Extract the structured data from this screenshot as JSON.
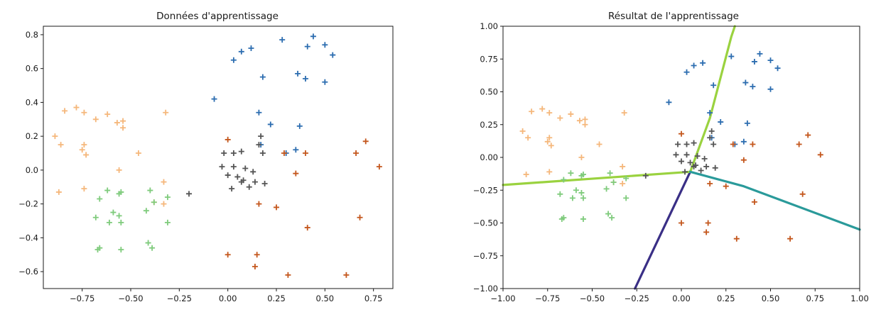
{
  "colors": {
    "blue": "#2c6db0",
    "orange": "#c4571d",
    "grey": "#555555",
    "lightorange": "#f5b77b",
    "green": "#7fcb7c",
    "boundary_navy": "#3a2f86",
    "boundary_lime": "#9ad23f",
    "boundary_teal": "#2a9a9a"
  },
  "chart_data": [
    {
      "type": "scatter",
      "title": "Données d'apprentissage",
      "xlabel": "",
      "ylabel": "",
      "xlim": [
        -0.95,
        0.85
      ],
      "ylim": [
        -0.7,
        0.85
      ],
      "xticks": [
        -0.75,
        -0.5,
        -0.25,
        0.0,
        0.25,
        0.5,
        0.75
      ],
      "xtick_labels": [
        "−0.75",
        "−0.50",
        "−0.25",
        "0.00",
        "0.25",
        "0.50",
        "0.75"
      ],
      "yticks": [
        -0.6,
        -0.4,
        -0.2,
        0.0,
        0.2,
        0.4,
        0.6,
        0.8
      ],
      "ytick_labels": [
        "−0.6",
        "−0.4",
        "−0.2",
        "0.0",
        "0.2",
        "0.4",
        "0.6",
        "0.8"
      ],
      "grid": false,
      "marker": "+",
      "series": [
        {
          "color": "#2c6db0",
          "points": [
            [
              0.03,
              0.65
            ],
            [
              0.07,
              0.7
            ],
            [
              0.12,
              0.72
            ],
            [
              0.18,
              0.55
            ],
            [
              0.28,
              0.77
            ],
            [
              0.44,
              0.79
            ],
            [
              0.5,
              0.74
            ],
            [
              0.54,
              0.68
            ],
            [
              0.41,
              0.73
            ],
            [
              0.36,
              0.57
            ],
            [
              0.4,
              0.54
            ],
            [
              0.5,
              0.52
            ],
            [
              -0.07,
              0.42
            ],
            [
              0.16,
              0.34
            ],
            [
              0.22,
              0.27
            ],
            [
              0.37,
              0.26
            ],
            [
              0.3,
              0.1
            ],
            [
              0.35,
              0.12
            ],
            [
              0.17,
              0.15
            ]
          ]
        },
        {
          "color": "#c4571d",
          "points": [
            [
              0.0,
              0.18
            ],
            [
              0.29,
              0.1
            ],
            [
              0.4,
              0.1
            ],
            [
              0.35,
              -0.02
            ],
            [
              0.16,
              -0.2
            ],
            [
              0.25,
              -0.22
            ],
            [
              0.41,
              -0.34
            ],
            [
              0.66,
              0.1
            ],
            [
              0.71,
              0.17
            ],
            [
              0.78,
              0.02
            ],
            [
              0.0,
              -0.5
            ],
            [
              0.15,
              -0.5
            ],
            [
              0.14,
              -0.57
            ],
            [
              0.31,
              -0.62
            ],
            [
              0.61,
              -0.62
            ],
            [
              0.68,
              -0.28
            ]
          ]
        },
        {
          "color": "#555555",
          "points": [
            [
              -0.02,
              0.1
            ],
            [
              0.03,
              0.1
            ],
            [
              0.07,
              0.11
            ],
            [
              0.17,
              0.2
            ],
            [
              0.16,
              0.15
            ],
            [
              0.18,
              0.1
            ],
            [
              -0.03,
              0.02
            ],
            [
              0.03,
              0.02
            ],
            [
              0.09,
              0.01
            ],
            [
              0.13,
              -0.01
            ],
            [
              0.0,
              -0.03
            ],
            [
              0.05,
              -0.04
            ],
            [
              0.08,
              -0.06
            ],
            [
              0.11,
              -0.1
            ],
            [
              0.02,
              -0.11
            ],
            [
              0.07,
              -0.07
            ],
            [
              0.14,
              -0.07
            ],
            [
              0.19,
              -0.08
            ],
            [
              -0.2,
              -0.14
            ]
          ]
        },
        {
          "color": "#f5b77b",
          "points": [
            [
              -0.89,
              0.2
            ],
            [
              -0.86,
              0.15
            ],
            [
              -0.84,
              0.35
            ],
            [
              -0.78,
              0.37
            ],
            [
              -0.74,
              0.34
            ],
            [
              -0.68,
              0.3
            ],
            [
              -0.62,
              0.33
            ],
            [
              -0.57,
              0.28
            ],
            [
              -0.54,
              0.29
            ],
            [
              -0.54,
              0.25
            ],
            [
              -0.32,
              0.34
            ],
            [
              -0.74,
              0.15
            ],
            [
              -0.75,
              0.12
            ],
            [
              -0.73,
              0.09
            ],
            [
              -0.46,
              0.1
            ],
            [
              -0.87,
              -0.13
            ],
            [
              -0.74,
              -0.11
            ],
            [
              -0.56,
              0.0
            ],
            [
              -0.33,
              -0.07
            ],
            [
              -0.38,
              -0.19
            ],
            [
              -0.33,
              -0.2
            ]
          ]
        },
        {
          "color": "#7fcb7c",
          "points": [
            [
              -0.66,
              -0.17
            ],
            [
              -0.62,
              -0.12
            ],
            [
              -0.56,
              -0.14
            ],
            [
              -0.55,
              -0.13
            ],
            [
              -0.4,
              -0.12
            ],
            [
              -0.38,
              -0.19
            ],
            [
              -0.31,
              -0.16
            ],
            [
              -0.42,
              -0.24
            ],
            [
              -0.68,
              -0.28
            ],
            [
              -0.59,
              -0.25
            ],
            [
              -0.56,
              -0.27
            ],
            [
              -0.61,
              -0.31
            ],
            [
              -0.55,
              -0.31
            ],
            [
              -0.31,
              -0.31
            ],
            [
              -0.66,
              -0.46
            ],
            [
              -0.67,
              -0.47
            ],
            [
              -0.55,
              -0.47
            ],
            [
              -0.41,
              -0.43
            ],
            [
              -0.39,
              -0.46
            ]
          ]
        }
      ]
    },
    {
      "type": "scatter",
      "title": "Résultat de l'apprentissage",
      "xlabel": "",
      "ylabel": "",
      "xlim": [
        -1.0,
        1.0
      ],
      "ylim": [
        -1.0,
        1.0
      ],
      "xticks": [
        -1.0,
        -0.75,
        -0.5,
        -0.25,
        0.0,
        0.25,
        0.5,
        0.75,
        1.0
      ],
      "xtick_labels": [
        "−1.00",
        "−0.75",
        "−0.50",
        "−0.25",
        "0.00",
        "0.25",
        "0.50",
        "0.75",
        "1.00"
      ],
      "yticks": [
        -1.0,
        -0.75,
        -0.5,
        -0.25,
        0.0,
        0.25,
        0.5,
        0.75,
        1.0
      ],
      "ytick_labels": [
        "−1.00",
        "−0.75",
        "−0.50",
        "−0.25",
        "0.00",
        "0.25",
        "0.50",
        "0.75",
        "1.00"
      ],
      "grid": false,
      "marker": "+",
      "decision_boundaries": [
        {
          "color": "#3a2f86",
          "points": [
            [
              -0.26,
              -1.0
            ],
            [
              0.05,
              -0.11
            ]
          ]
        },
        {
          "color": "#9ad23f",
          "points": [
            [
              0.05,
              -0.11
            ],
            [
              0.16,
              0.3
            ],
            [
              0.28,
              0.92
            ],
            [
              0.3,
              1.0
            ]
          ]
        },
        {
          "color": "#9ad23f",
          "points": [
            [
              -1.0,
              -0.21
            ],
            [
              0.05,
              -0.11
            ]
          ]
        },
        {
          "color": "#2a9a9a",
          "points": [
            [
              0.05,
              -0.11
            ],
            [
              0.35,
              -0.22
            ],
            [
              1.0,
              -0.55
            ]
          ]
        }
      ],
      "series": [
        {
          "color": "#2c6db0",
          "points": [
            [
              0.03,
              0.65
            ],
            [
              0.07,
              0.7
            ],
            [
              0.12,
              0.72
            ],
            [
              0.18,
              0.55
            ],
            [
              0.28,
              0.77
            ],
            [
              0.44,
              0.79
            ],
            [
              0.5,
              0.74
            ],
            [
              0.54,
              0.68
            ],
            [
              0.41,
              0.73
            ],
            [
              0.36,
              0.57
            ],
            [
              0.4,
              0.54
            ],
            [
              0.5,
              0.52
            ],
            [
              -0.07,
              0.42
            ],
            [
              0.16,
              0.34
            ],
            [
              0.22,
              0.27
            ],
            [
              0.37,
              0.26
            ],
            [
              0.3,
              0.1
            ],
            [
              0.35,
              0.12
            ],
            [
              0.17,
              0.15
            ]
          ]
        },
        {
          "color": "#c4571d",
          "points": [
            [
              0.0,
              0.18
            ],
            [
              0.29,
              0.1
            ],
            [
              0.4,
              0.1
            ],
            [
              0.35,
              -0.02
            ],
            [
              0.16,
              -0.2
            ],
            [
              0.25,
              -0.22
            ],
            [
              0.41,
              -0.34
            ],
            [
              0.66,
              0.1
            ],
            [
              0.71,
              0.17
            ],
            [
              0.78,
              0.02
            ],
            [
              0.0,
              -0.5
            ],
            [
              0.15,
              -0.5
            ],
            [
              0.14,
              -0.57
            ],
            [
              0.31,
              -0.62
            ],
            [
              0.61,
              -0.62
            ],
            [
              0.68,
              -0.28
            ]
          ]
        },
        {
          "color": "#555555",
          "points": [
            [
              -0.02,
              0.1
            ],
            [
              0.03,
              0.1
            ],
            [
              0.07,
              0.11
            ],
            [
              0.17,
              0.2
            ],
            [
              0.16,
              0.15
            ],
            [
              0.18,
              0.1
            ],
            [
              -0.03,
              0.02
            ],
            [
              0.03,
              0.02
            ],
            [
              0.09,
              0.01
            ],
            [
              0.13,
              -0.01
            ],
            [
              0.0,
              -0.03
            ],
            [
              0.05,
              -0.04
            ],
            [
              0.08,
              -0.06
            ],
            [
              0.11,
              -0.1
            ],
            [
              0.02,
              -0.11
            ],
            [
              0.07,
              -0.07
            ],
            [
              0.14,
              -0.07
            ],
            [
              0.19,
              -0.08
            ],
            [
              -0.2,
              -0.14
            ]
          ]
        },
        {
          "color": "#f5b77b",
          "points": [
            [
              -0.89,
              0.2
            ],
            [
              -0.86,
              0.15
            ],
            [
              -0.84,
              0.35
            ],
            [
              -0.78,
              0.37
            ],
            [
              -0.74,
              0.34
            ],
            [
              -0.68,
              0.3
            ],
            [
              -0.62,
              0.33
            ],
            [
              -0.57,
              0.28
            ],
            [
              -0.54,
              0.29
            ],
            [
              -0.54,
              0.25
            ],
            [
              -0.32,
              0.34
            ],
            [
              -0.74,
              0.15
            ],
            [
              -0.75,
              0.12
            ],
            [
              -0.73,
              0.09
            ],
            [
              -0.46,
              0.1
            ],
            [
              -0.87,
              -0.13
            ],
            [
              -0.74,
              -0.11
            ],
            [
              -0.56,
              0.0
            ],
            [
              -0.33,
              -0.07
            ],
            [
              -0.38,
              -0.19
            ],
            [
              -0.33,
              -0.2
            ]
          ]
        },
        {
          "color": "#7fcb7c",
          "points": [
            [
              -0.66,
              -0.17
            ],
            [
              -0.62,
              -0.12
            ],
            [
              -0.56,
              -0.14
            ],
            [
              -0.55,
              -0.13
            ],
            [
              -0.4,
              -0.12
            ],
            [
              -0.38,
              -0.19
            ],
            [
              -0.31,
              -0.16
            ],
            [
              -0.42,
              -0.24
            ],
            [
              -0.68,
              -0.28
            ],
            [
              -0.59,
              -0.25
            ],
            [
              -0.56,
              -0.27
            ],
            [
              -0.61,
              -0.31
            ],
            [
              -0.55,
              -0.31
            ],
            [
              -0.31,
              -0.31
            ],
            [
              -0.66,
              -0.46
            ],
            [
              -0.67,
              -0.47
            ],
            [
              -0.55,
              -0.47
            ],
            [
              -0.41,
              -0.43
            ],
            [
              -0.39,
              -0.46
            ]
          ]
        }
      ]
    }
  ]
}
